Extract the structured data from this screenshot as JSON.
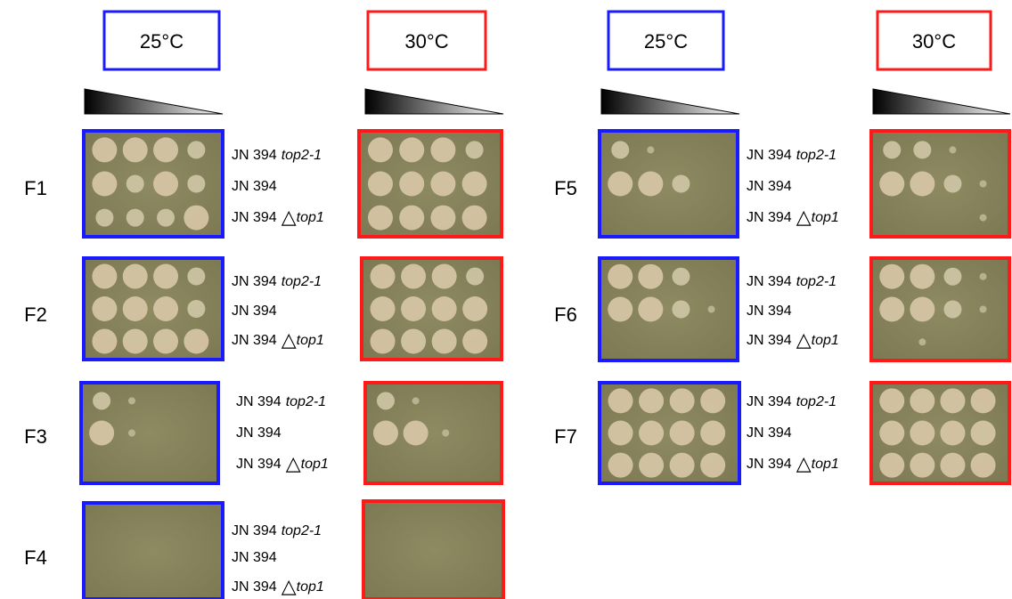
{
  "temperatures": [
    "25°C",
    "30°C",
    "25°C",
    "30°C"
  ],
  "panels": [
    {
      "label": "F1",
      "strains": [
        {
          "name": "JN 394",
          "allele": "top2-1"
        },
        {
          "name": "JN 394"
        },
        {
          "name": "JN 394",
          "symbol": "△",
          "allele": "top1"
        }
      ]
    },
    {
      "label": "F2",
      "strains": [
        {
          "name": "JN 394",
          "allele": "top2-1"
        },
        {
          "name": "JN 394"
        },
        {
          "name": "JN 394",
          "symbol": "△",
          "allele": "top1"
        }
      ]
    },
    {
      "label": "F3",
      "strains": [
        {
          "name": "JN 394",
          "allele": "top2-1"
        },
        {
          "name": "JN 394"
        },
        {
          "name": "JN 394",
          "symbol": "△",
          "allele": "top1"
        }
      ]
    },
    {
      "label": "F4",
      "strains": [
        {
          "name": "JN 394",
          "allele": "top2-1"
        },
        {
          "name": "JN 394"
        },
        {
          "name": "JN 394",
          "symbol": "△",
          "allele": "top1"
        }
      ]
    },
    {
      "label": "F5",
      "strains": [
        {
          "name": "JN 394",
          "allele": "top2-1"
        },
        {
          "name": "JN 394"
        },
        {
          "name": "JN 394",
          "symbol": "△",
          "allele": "top1"
        }
      ]
    },
    {
      "label": "F6",
      "strains": [
        {
          "name": "JN 394",
          "allele": "top2-1"
        },
        {
          "name": "JN 394"
        },
        {
          "name": "JN 394",
          "symbol": "△",
          "allele": "top1"
        }
      ]
    },
    {
      "label": "F7",
      "strains": [
        {
          "name": "JN 394",
          "allele": "top2-1"
        },
        {
          "name": "JN 394"
        },
        {
          "name": "JN 394",
          "symbol": "△",
          "allele": "top1"
        }
      ]
    }
  ]
}
